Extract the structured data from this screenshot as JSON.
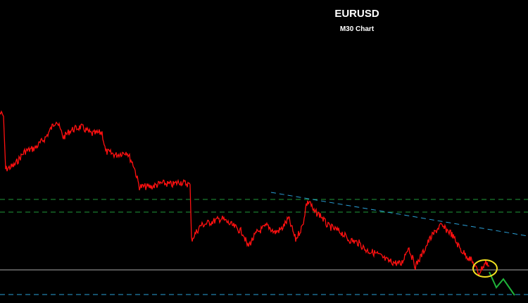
{
  "header": {
    "title": "EURUSD",
    "subtitle": "M30 Chart"
  }
}
